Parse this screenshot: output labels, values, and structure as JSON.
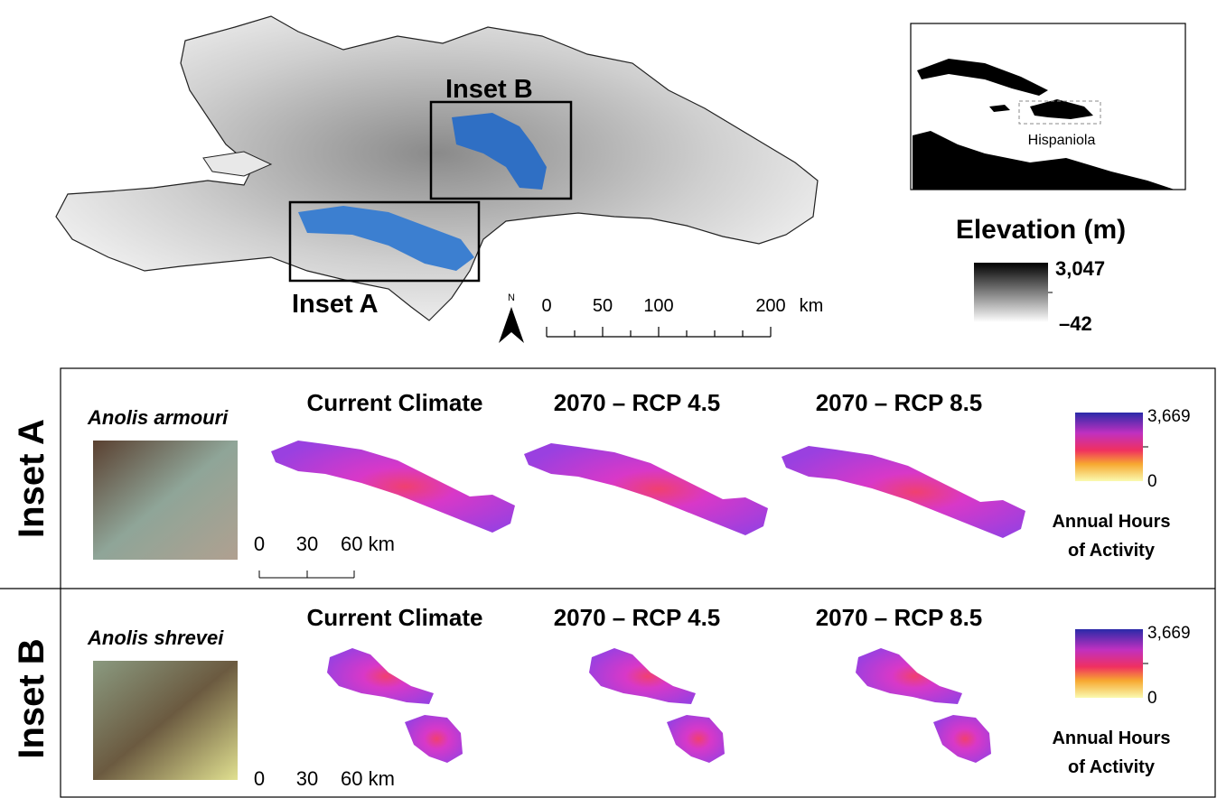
{
  "overview_map": {
    "inset_labels": [
      "Inset B",
      "Inset A"
    ],
    "north": "N",
    "scale_bar": {
      "ticks": [
        "0",
        "50",
        "100",
        "200"
      ],
      "unit": "km"
    }
  },
  "locator_map": {
    "label": "Hispaniola"
  },
  "elevation_legend": {
    "title": "Elevation (m)",
    "max": "3,047",
    "min": "–42"
  },
  "panels": [
    {
      "row_label": "Inset A",
      "species": "Anolis armouri",
      "columns": [
        "Current Climate",
        "2070 – RCP 4.5",
        "2070 – RCP 8.5"
      ],
      "scale_bar": {
        "ticks": [
          "0",
          "30",
          "60 km"
        ]
      },
      "legend": {
        "max": "3,669",
        "min": "0",
        "title": [
          "Annual Hours",
          "of Activity"
        ]
      }
    },
    {
      "row_label": "Inset B",
      "species": "Anolis shrevei",
      "columns": [
        "Current Climate",
        "2070 – RCP 4.5",
        "2070 – RCP 8.5"
      ],
      "scale_bar": {
        "ticks": [
          "0",
          "30",
          "60 km"
        ]
      },
      "legend": {
        "max": "3,669",
        "min": "0",
        "title": [
          "Annual Hours",
          "of Activity"
        ]
      }
    }
  ]
}
